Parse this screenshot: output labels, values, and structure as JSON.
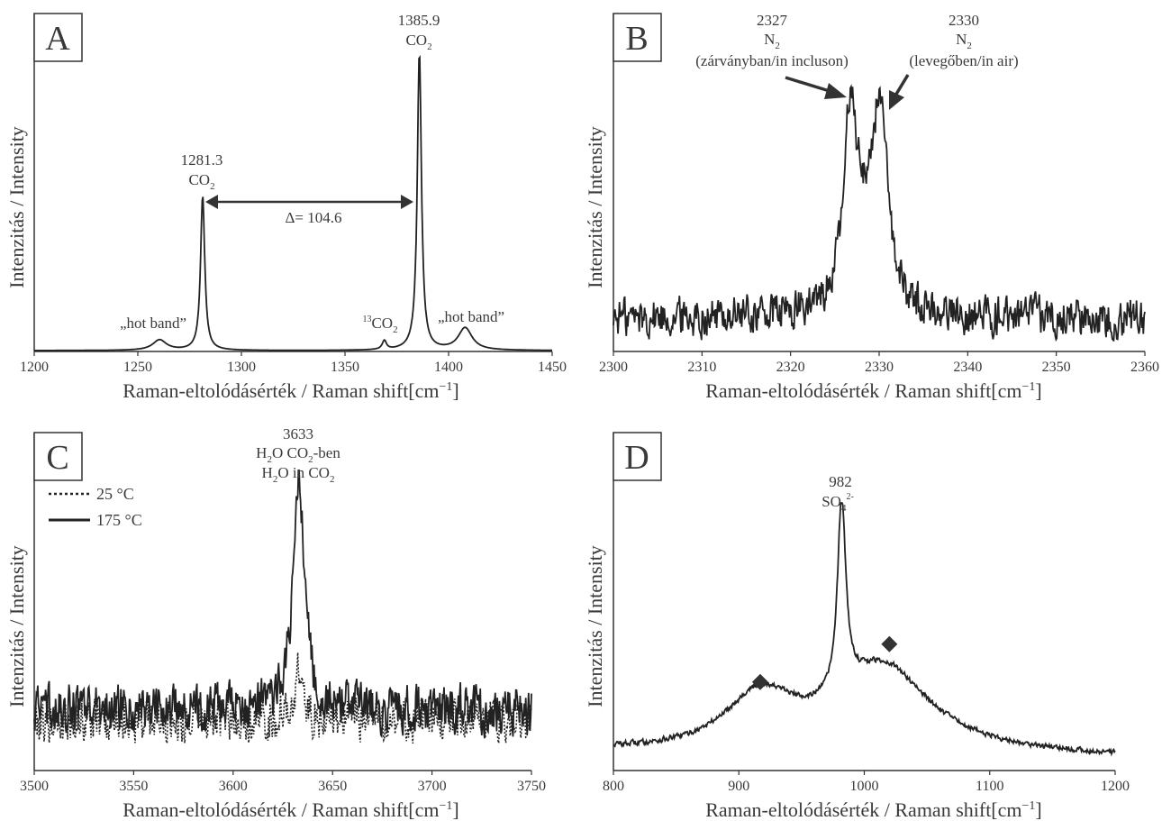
{
  "figure": {
    "colors": {
      "line": "#222222",
      "text": "#3a3a3a",
      "marker": "#333333"
    }
  },
  "chart_data": [
    {
      "panel": "A",
      "type": "line",
      "xlabel_main": "Raman-eltolódásérték / Raman shift[cm",
      "xlabel_sup": "−1",
      "xlabel_close": "]",
      "ylabel": "Intenzitás / Intensity",
      "xlim": [
        1200,
        1450
      ],
      "xticks": [
        1200,
        1250,
        1300,
        1350,
        1400,
        1450
      ],
      "tick_labels": [
        "1200",
        "1250",
        "1300",
        "1350",
        "1400",
        "1450"
      ],
      "ylim": [
        0,
        100
      ],
      "series": [
        {
          "style": "solid",
          "peaks": [
            {
              "x": 1260.5,
              "height": 3.5,
              "width": 4
            },
            {
              "x": 1281.3,
              "height": 52,
              "width": 1.2
            },
            {
              "x": 1369,
              "height": 3,
              "width": 1.2
            },
            {
              "x": 1385.9,
              "height": 100,
              "width": 1.2
            },
            {
              "x": 1408,
              "height": 7.5,
              "width": 4
            }
          ],
          "baseline": 0,
          "noise": 0
        }
      ],
      "annotations": {
        "peak1_value": "1281.3",
        "peak1_species": "CO",
        "peak1_sub": "2",
        "peak2_value": "1385.9",
        "peak2_species": "CO",
        "peak2_sub": "2",
        "delta": "Δ= 104.6",
        "hot_band_left": "„hot band”",
        "hot_band_right": "„hot band”",
        "c13_sup": "13",
        "c13_species": "CO",
        "c13_sub": "2"
      }
    },
    {
      "panel": "B",
      "type": "line",
      "xlabel_main": "Raman-eltolódásérték / Raman shift[cm",
      "xlabel_sup": "−1",
      "xlabel_close": "]",
      "ylabel": "Intenzitás / Intensity",
      "xlim": [
        2300,
        2360
      ],
      "xticks": [
        2300,
        2310,
        2320,
        2330,
        2340,
        2350,
        2360
      ],
      "tick_labels": [
        "2300",
        "2310",
        "2320",
        "2330",
        "2340",
        "2350",
        "2360"
      ],
      "ylim": [
        0,
        100
      ],
      "series": [
        {
          "style": "solid",
          "peaks": [
            {
              "x": 2326.8,
              "height": 78,
              "width": 0.9
            },
            {
              "x": 2330.1,
              "height": 74,
              "width": 1.0
            },
            {
              "x": 2328.6,
              "height": 22,
              "width": 1.6
            }
          ],
          "baseline": 12,
          "noise": 9
        }
      ],
      "annotations": {
        "left_value": "2327",
        "left_species": "N",
        "left_sub": "2",
        "left_desc": "(zárványban/in incluson)",
        "right_value": "2330",
        "right_species": "N",
        "right_sub": "2",
        "right_desc": "(levegőben/in air)"
      }
    },
    {
      "panel": "C",
      "type": "line",
      "xlabel_main": "Raman-eltolódásérték / Raman shift[cm",
      "xlabel_sup": "−1",
      "xlabel_close": "]",
      "ylabel": "Intenzitás / Intensity",
      "xlim": [
        3500,
        3750
      ],
      "xticks": [
        3500,
        3550,
        3600,
        3650,
        3700,
        3750
      ],
      "tick_labels": [
        "3500",
        "3550",
        "3600",
        "3650",
        "3700",
        "3750"
      ],
      "ylim": [
        0,
        100
      ],
      "legend": [
        {
          "name": "25 °C",
          "style": "dotted"
        },
        {
          "name": "175 °C",
          "style": "solid"
        }
      ],
      "legend_placement": "top-left",
      "series": [
        {
          "name": "25 °C",
          "style": "dotted",
          "peaks": [
            {
              "x": 3633,
              "height": 18,
              "width": 2.5
            }
          ],
          "baseline": 13,
          "noise": 9
        },
        {
          "name": "175 °C",
          "style": "solid",
          "peaks": [
            {
              "x": 3633,
              "height": 88,
              "width": 3.2
            }
          ],
          "baseline": 17,
          "noise": 10
        }
      ],
      "annotations": {
        "value": "3633",
        "line2_a": "H",
        "line2_sub1": "2",
        "line2_b": "O CO",
        "line2_sub2": "2",
        "line2_c": "-ben",
        "line3_a": "H",
        "line3_sub1": "2",
        "line3_b": "O in CO",
        "line3_sub2": "2"
      }
    },
    {
      "panel": "D",
      "type": "line",
      "xlabel_main": "Raman-eltolódásérték / Raman shift[cm",
      "xlabel_sup": "−1",
      "xlabel_close": "]",
      "ylabel": "Intenzitás / Intensity",
      "xlim": [
        800,
        1200
      ],
      "xticks": [
        800,
        900,
        1000,
        1100,
        1200
      ],
      "tick_labels": [
        "800",
        "900",
        "1000",
        "1100",
        "1200"
      ],
      "ylim": [
        0,
        100
      ],
      "series": [
        {
          "style": "solid",
          "peaks": [
            {
              "x": 982,
              "height": 76,
              "width": 4
            },
            {
              "x": 917,
              "height": 22,
              "width": 35
            },
            {
              "x": 1015,
              "height": 34,
              "width": 45
            }
          ],
          "baseline": 5,
          "noise": 1.2
        }
      ],
      "markers": [
        {
          "x": 917,
          "y": 34
        },
        {
          "x": 1020,
          "y": 49
        }
      ],
      "annotations": {
        "value": "982",
        "species": "SO",
        "sub": "4",
        "sup": "2-"
      }
    }
  ]
}
